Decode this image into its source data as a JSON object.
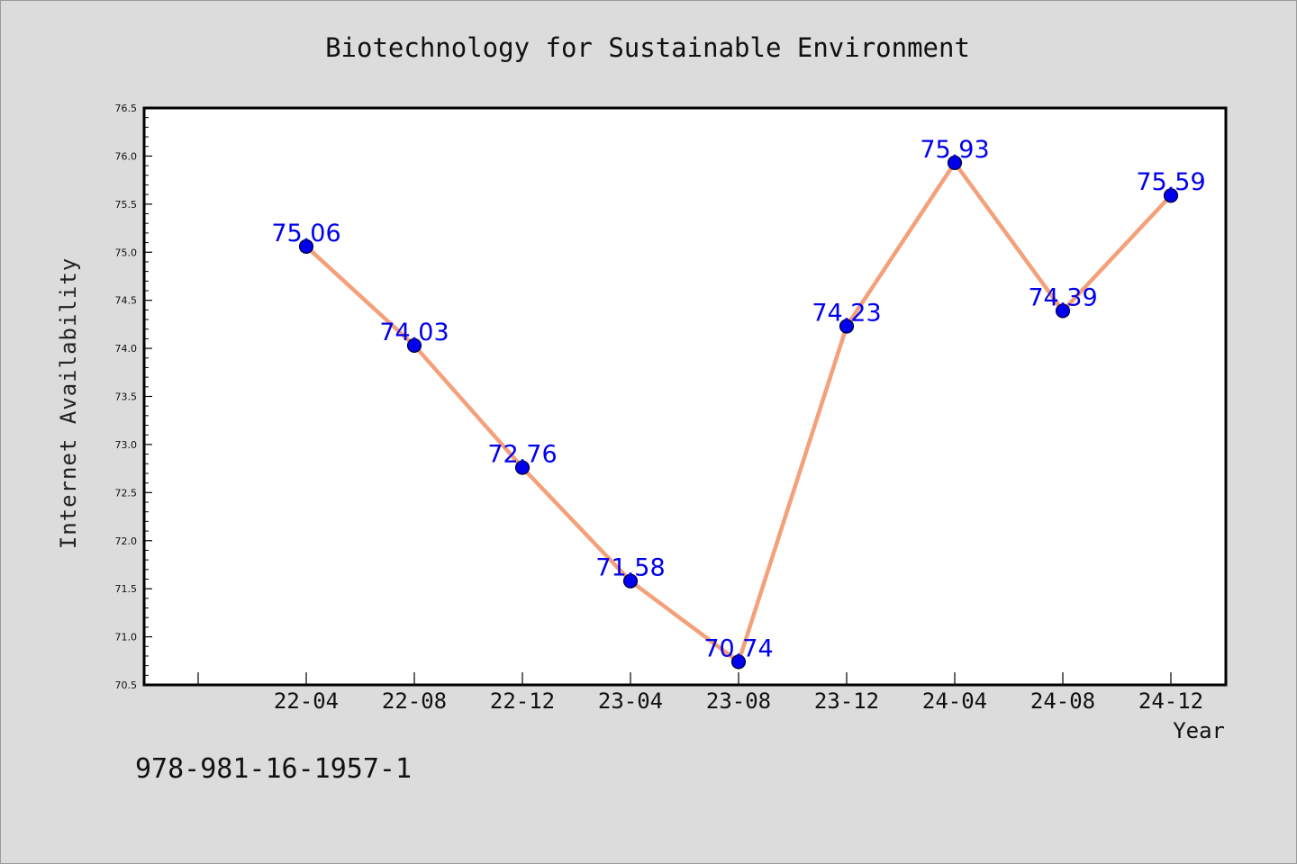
{
  "chart_data": {
    "type": "line",
    "title": "Biotechnology for Sustainable Environment",
    "xlabel": "Year",
    "ylabel": "Internet Availability",
    "categories": [
      "22-04",
      "22-08",
      "22-12",
      "23-04",
      "23-08",
      "23-12",
      "24-04",
      "24-08",
      "24-12"
    ],
    "values": [
      75.06,
      74.03,
      72.76,
      71.58,
      70.74,
      74.23,
      75.93,
      74.39,
      75.59
    ],
    "data_labels": [
      "75.06",
      "74.03",
      "72.76",
      "71.58",
      "70.74",
      "74.23",
      "75.93",
      "74.39",
      "75.59"
    ],
    "ylim": [
      70.5,
      76.5
    ],
    "yticks": [
      "70.5",
      "71.0",
      "71.5",
      "72.0",
      "72.5",
      "73.0",
      "73.5",
      "74.0",
      "74.5",
      "75.0",
      "75.5",
      "76.0",
      "76.5"
    ],
    "grid": false,
    "line_color": "#f4a07a",
    "marker_color": "#0000ee",
    "label_color": "#0000ee"
  },
  "footer": {
    "isbn": "978-981-16-1957-1"
  }
}
